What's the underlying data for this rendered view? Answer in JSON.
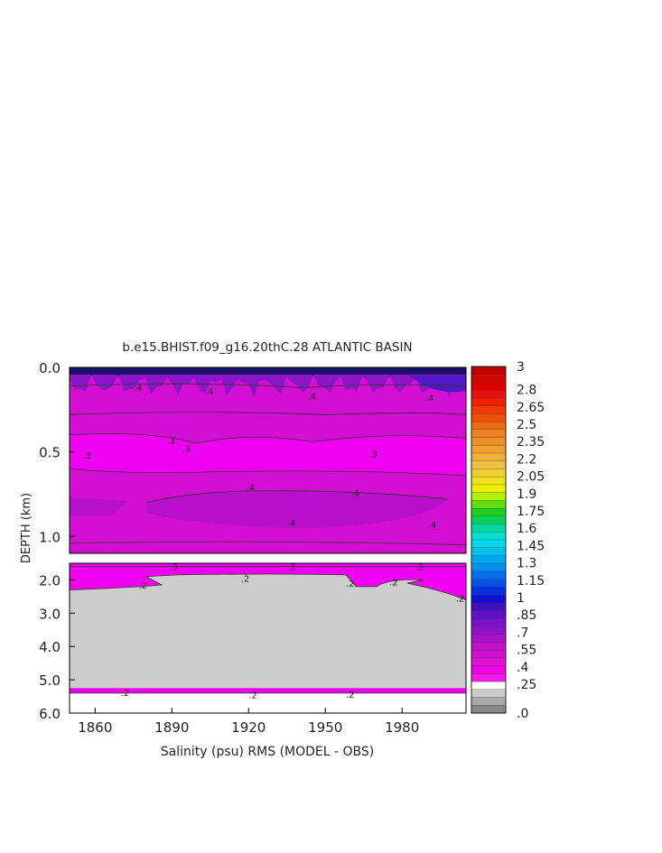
{
  "chart_data": {
    "type": "heatmap",
    "title": "b.e15.BHIST.f09_g16.20thC.28 ATLANTIC BASIN",
    "xlabel": "Salinity (psu) RMS (MODEL - OBS)",
    "ylabel": "DEPTH (km)",
    "x_ticks": [
      "1860",
      "1890",
      "1920",
      "1950",
      "1980"
    ],
    "x_tick_values": [
      1860,
      1890,
      1920,
      1950,
      1980
    ],
    "xlim": [
      1850,
      2005
    ],
    "upper_panel": {
      "ylim": [
        0.0,
        1.1
      ],
      "y_ticks": [
        "0.0",
        "0.5",
        "1.0"
      ],
      "y_tick_values": [
        0.0,
        0.5,
        1.0
      ]
    },
    "lower_panel": {
      "ylim": [
        1.5,
        6.0
      ],
      "y_ticks": [
        "2.0",
        "3.0",
        "4.0",
        "5.0",
        "6.0"
      ],
      "y_tick_values": [
        2.0,
        3.0,
        4.0,
        5.0,
        6.0
      ]
    },
    "colorbar": {
      "labels": [
        "3",
        "2.8",
        "2.65",
        "2.5",
        "2.35",
        "2.2",
        "2.05",
        "1.9",
        "1.75",
        "1.6",
        "1.45",
        "1.3",
        "1.15",
        "1",
        ".85",
        ".7",
        ".55",
        ".4",
        ".25",
        ".0"
      ],
      "label_values": [
        3,
        2.8,
        2.65,
        2.5,
        2.35,
        2.2,
        2.05,
        1.9,
        1.75,
        1.6,
        1.45,
        1.3,
        1.15,
        1,
        0.85,
        0.7,
        0.55,
        0.4,
        0.25,
        0.0
      ],
      "colors_top_to_bottom": [
        "#c00000",
        "#d40000",
        "#e00000",
        "#ec1010",
        "#f02000",
        "#f03a00",
        "#f05000",
        "#f06a10",
        "#f08020",
        "#f09028",
        "#f0a030",
        "#f0b038",
        "#f0c040",
        "#f0d030",
        "#f0e020",
        "#e8f000",
        "#b0f000",
        "#60e000",
        "#20d020",
        "#00d060",
        "#00d8a0",
        "#00e0d0",
        "#00d8f0",
        "#00c0f0",
        "#00a8f0",
        "#0090f0",
        "#0070f0",
        "#0050e8",
        "#0030e0",
        "#1010d0",
        "#4010c0",
        "#6010c8",
        "#7a10c8",
        "#9010c8",
        "#a810c8",
        "#c010c8",
        "#d010d0",
        "#e010d8",
        "#f000e0",
        "#f818e8",
        "#ffffff",
        "#cccccc",
        "#aaaaaa",
        "#888888"
      ]
    },
    "contour_labels": [
      ".4",
      ".4",
      ".4",
      ".4",
      ".3",
      ".3",
      ".3",
      ".3",
      ".4",
      ".4",
      ".4",
      ".4",
      ".3",
      ".3",
      ".3",
      ".2",
      ".2",
      ".2",
      ".2",
      ".2",
      ".2",
      ".2",
      ".2"
    ],
    "colors": {
      "surface_dark": "#1a0e6e",
      "upper_purple": "#8a16c8",
      "magenta": "#d40fd4",
      "bright_magenta": "#f000f0",
      "mid_purple": "#b80fcc",
      "deep_gray": "#cdcdcd"
    }
  }
}
